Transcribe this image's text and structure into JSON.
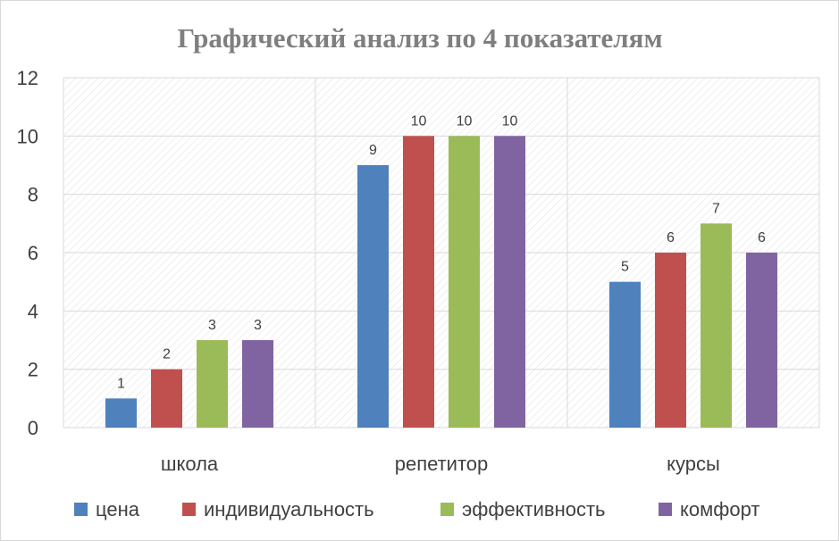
{
  "chart_data": {
    "type": "bar",
    "title": "Графический анализ по 4 показателям",
    "xlabel": "",
    "ylabel": "",
    "categories": [
      "школа",
      "репетитор",
      "курсы"
    ],
    "series": [
      {
        "name": "цена",
        "color": "#4f81bd",
        "values": [
          1,
          9,
          5
        ]
      },
      {
        "name": "индивидуальность",
        "color": "#c0504d",
        "values": [
          2,
          10,
          6
        ]
      },
      {
        "name": "эффективность",
        "color": "#9bbb59",
        "values": [
          3,
          10,
          7
        ]
      },
      {
        "name": "комфорт",
        "color": "#8064a2",
        "values": [
          3,
          10,
          6
        ]
      }
    ],
    "ylim": [
      0,
      12
    ],
    "yticks": [
      0,
      2,
      4,
      6,
      8,
      10,
      12
    ],
    "grid": true,
    "legend": "bottom",
    "data_labels": true
  }
}
